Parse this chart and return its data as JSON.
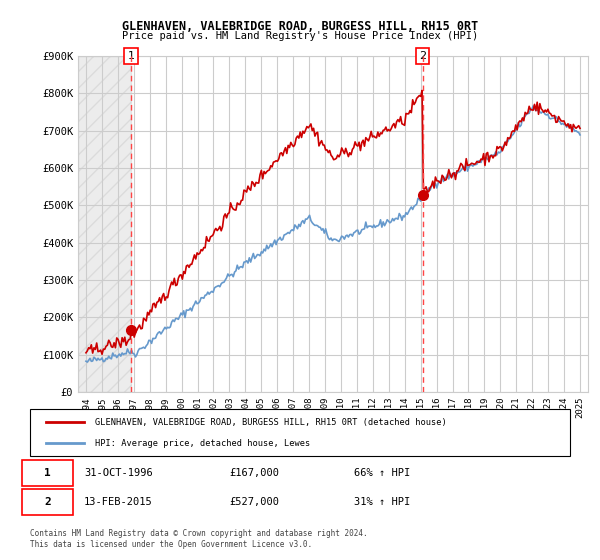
{
  "title": "GLENHAVEN, VALEBRIDGE ROAD, BURGESS HILL, RH15 0RT",
  "subtitle": "Price paid vs. HM Land Registry's House Price Index (HPI)",
  "ylabel_ticks": [
    "£0",
    "£100K",
    "£200K",
    "£300K",
    "£400K",
    "£500K",
    "£600K",
    "£700K",
    "£800K",
    "£900K"
  ],
  "ytick_values": [
    0,
    100000,
    200000,
    300000,
    400000,
    500000,
    600000,
    700000,
    800000,
    900000
  ],
  "ylim": [
    0,
    900000
  ],
  "sale1_date": 1996.83,
  "sale1_price": 167000,
  "sale1_label": "1",
  "sale2_date": 2015.12,
  "sale2_price": 527000,
  "sale2_label": "2",
  "hpi_color": "#6699cc",
  "price_color": "#cc0000",
  "marker_color": "#cc0000",
  "dashed_line_color": "#ff4444",
  "legend_label_price": "GLENHAVEN, VALEBRIDGE ROAD, BURGESS HILL, RH15 0RT (detached house)",
  "legend_label_hpi": "HPI: Average price, detached house, Lewes",
  "table_row1": [
    "1",
    "31-OCT-1996",
    "£167,000",
    "66% ↑ HPI"
  ],
  "table_row2": [
    "2",
    "13-FEB-2015",
    "£527,000",
    "31% ↑ HPI"
  ],
  "footnote": "Contains HM Land Registry data © Crown copyright and database right 2024.\nThis data is licensed under the Open Government Licence v3.0.",
  "bg_hatch_color": "#dddddd",
  "grid_color": "#cccccc",
  "xlim_start": 1993.5,
  "xlim_end": 2025.5,
  "xtick_years": [
    1994,
    1995,
    1996,
    1997,
    1998,
    1999,
    2000,
    2001,
    2002,
    2003,
    2004,
    2005,
    2006,
    2007,
    2008,
    2009,
    2010,
    2011,
    2012,
    2013,
    2014,
    2015,
    2016,
    2017,
    2018,
    2019,
    2020,
    2021,
    2022,
    2023,
    2024,
    2025
  ]
}
